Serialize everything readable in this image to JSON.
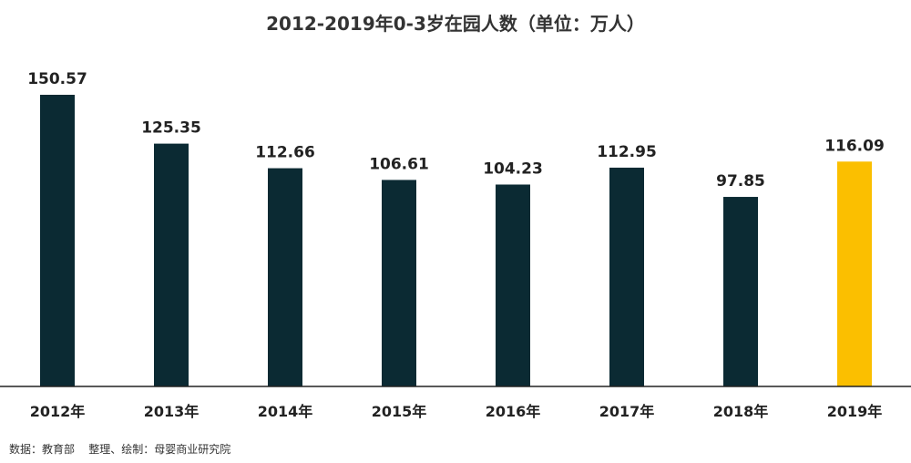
{
  "chart_data": {
    "type": "bar",
    "title": "2012-2019年0-3岁在园人数（单位：万人）",
    "categories": [
      "2012年",
      "2013年",
      "2014年",
      "2015年",
      "2016年",
      "2017年",
      "2018年",
      "2019年"
    ],
    "values": [
      150.57,
      125.35,
      112.66,
      106.61,
      104.23,
      112.95,
      97.85,
      116.09
    ],
    "value_labels": [
      "150.57",
      "125.35",
      "112.66",
      "106.61",
      "104.23",
      "112.95",
      "97.85",
      "116.09"
    ],
    "ylim": [
      0,
      150.57
    ],
    "grid": false,
    "legend": "none",
    "colors": {
      "bar": "#0b2a33",
      "highlight": "#fbbf00",
      "axis": "#222222"
    },
    "highlight_index": 7
  },
  "source_note": "数据：教育部    整理、绘制：母婴商业研究院"
}
